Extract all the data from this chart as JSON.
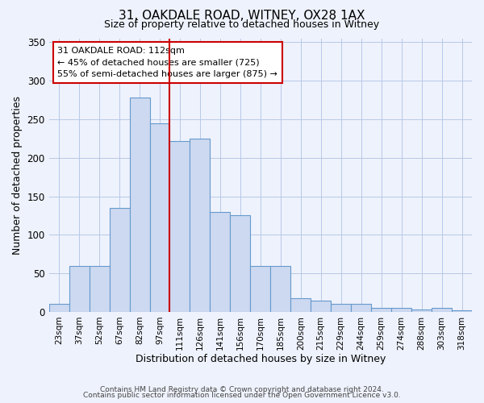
{
  "title": "31, OAKDALE ROAD, WITNEY, OX28 1AX",
  "subtitle": "Size of property relative to detached houses in Witney",
  "xlabel": "Distribution of detached houses by size in Witney",
  "ylabel": "Number of detached properties",
  "bar_labels": [
    "23sqm",
    "37sqm",
    "52sqm",
    "67sqm",
    "82sqm",
    "97sqm",
    "111sqm",
    "126sqm",
    "141sqm",
    "156sqm",
    "170sqm",
    "185sqm",
    "200sqm",
    "215sqm",
    "229sqm",
    "244sqm",
    "259sqm",
    "274sqm",
    "288sqm",
    "303sqm",
    "318sqm"
  ],
  "bar_values": [
    10,
    60,
    60,
    135,
    278,
    245,
    222,
    225,
    130,
    125,
    60,
    60,
    18,
    15,
    10,
    10,
    5,
    5,
    3,
    5,
    2
  ],
  "bar_color": "#ccd9f0",
  "bar_edge_color": "#6699cc",
  "vline_x_index": 6,
  "vline_color": "#cc0000",
  "annotation_title": "31 OAKDALE ROAD: 112sqm",
  "annotation_line1": "← 45% of detached houses are smaller (725)",
  "annotation_line2": "55% of semi-detached houses are larger (875) →",
  "annotation_box_color": "#ffffff",
  "annotation_box_edge": "#cc0000",
  "ylim": [
    0,
    355
  ],
  "yticks": [
    0,
    50,
    100,
    150,
    200,
    250,
    300,
    350
  ],
  "footer1": "Contains HM Land Registry data © Crown copyright and database right 2024.",
  "footer2": "Contains public sector information licensed under the Open Government Licence v3.0.",
  "bg_color": "#eef2fc"
}
